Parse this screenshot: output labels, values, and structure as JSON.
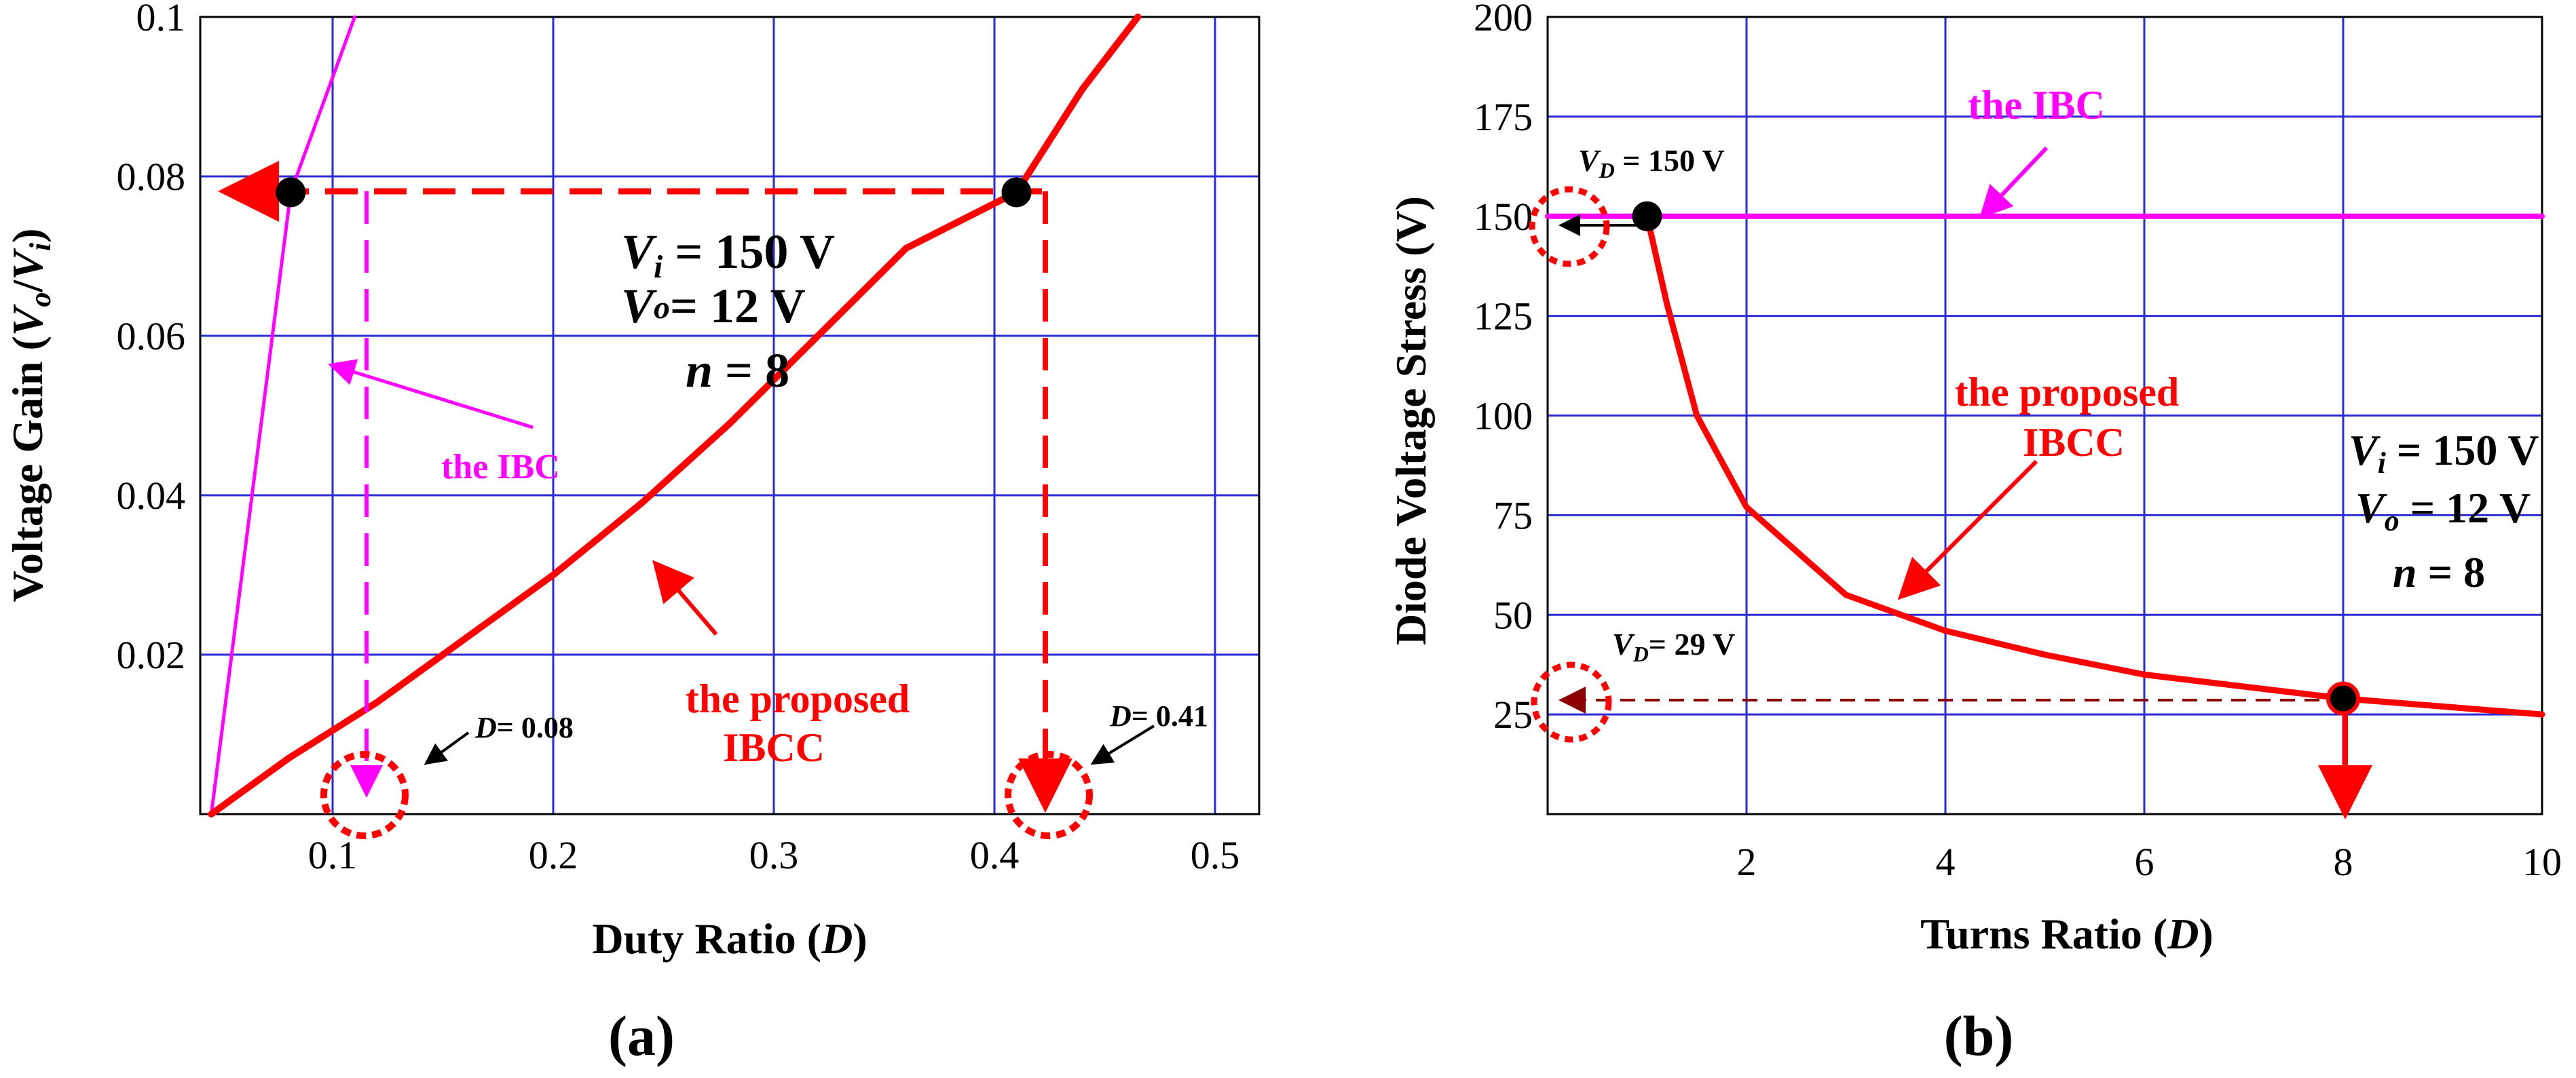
{
  "chart_data": [
    {
      "type": "line",
      "panel_label": "(a)",
      "xlabel": "Duty Ratio (D)",
      "xlabel_parts": {
        "text": "Duty Ratio (",
        "italic": "D",
        "close": ")"
      },
      "ylabel": "Voltage Gain (Vo/Vi)",
      "ylabel_parts": {
        "text": "Voltage Gain  (",
        "v1": "V",
        "s1": "o",
        "slash": "/",
        "v2": "V",
        "s2": "i",
        "close": ")"
      },
      "xlim": [
        0.04,
        0.52
      ],
      "ylim": [
        0,
        0.1
      ],
      "x_ticks": [
        0.1,
        0.2,
        0.3,
        0.4,
        0.5
      ],
      "x_tick_labels": [
        "0.1",
        "0.2",
        "0.3",
        "0.4",
        "0.5"
      ],
      "y_ticks": [
        0.02,
        0.04,
        0.06,
        0.08,
        0.1
      ],
      "y_tick_labels": [
        "0.02",
        "0.04",
        "0.06",
        "0.08",
        "0.1"
      ],
      "grid": true,
      "series": [
        {
          "name": "the IBC",
          "color": "#ff00ff",
          "x": [
            0.045,
            0.081,
            0.11
          ],
          "y": [
            0,
            0.078,
            0.1
          ]
        },
        {
          "name": "the proposed IBCC",
          "color": "#ff0000",
          "x": [
            0.045,
            0.08,
            0.12,
            0.16,
            0.2,
            0.24,
            0.28,
            0.32,
            0.36,
            0.41,
            0.44,
            0.465
          ],
          "y": [
            0,
            0.007,
            0.014,
            0.022,
            0.03,
            0.039,
            0.049,
            0.06,
            0.071,
            0.078,
            0.091,
            0.1
          ]
        }
      ],
      "markers": [
        {
          "x": 0.081,
          "y": 0.078
        },
        {
          "x": 0.41,
          "y": 0.078
        }
      ],
      "annotations": {
        "ibc_label": "the IBC",
        "proposed_line1": "the proposed",
        "proposed_line2": "IBCC",
        "d1_label": "D",
        "d1_value": "= 0.08",
        "d2_label": "D",
        "d2_value": "= 0.41",
        "cond_vi_sym": "V",
        "cond_vi_sub": "i",
        "cond_vi_val": " = 150 V",
        "cond_vo_sym": "V",
        "cond_vo_sub": "o",
        "cond_vo_val": "= 12 V",
        "cond_n_sym": "n",
        "cond_n_val": " = 8"
      }
    },
    {
      "type": "line",
      "panel_label": "(b)",
      "xlabel": "Turns Ratio (D)",
      "xlabel_parts": {
        "text": "Turns Ratio (",
        "italic": "D",
        "close": ")"
      },
      "ylabel": "Diode Voltage Stress (V)",
      "xlim": [
        0,
        10
      ],
      "ylim": [
        0,
        200
      ],
      "x_ticks": [
        2,
        4,
        6,
        8,
        10
      ],
      "x_tick_labels": [
        "2",
        "4",
        "6",
        "8",
        "10"
      ],
      "y_ticks": [
        25,
        50,
        75,
        100,
        125,
        150,
        175,
        200
      ],
      "y_tick_labels": [
        "25",
        "50",
        "75",
        "100",
        "125",
        "150",
        "175",
        "200"
      ],
      "grid": true,
      "series": [
        {
          "name": "the IBC",
          "color": "#ff00ff",
          "x": [
            0,
            10
          ],
          "y": [
            150,
            150
          ]
        },
        {
          "name": "the proposed IBCC",
          "color": "#ff0000",
          "x": [
            1,
            1.2,
            1.5,
            2,
            2.5,
            3,
            4,
            5,
            6,
            7,
            8,
            9,
            10
          ],
          "y": [
            150,
            128,
            100,
            77,
            66,
            55,
            46,
            40,
            35,
            32,
            29,
            27,
            25
          ]
        }
      ],
      "markers": [
        {
          "x": 1,
          "y": 150
        },
        {
          "x": 8,
          "y": 29
        }
      ],
      "annotations": {
        "ibc_label": "the IBC",
        "proposed_line1": "the proposed",
        "proposed_line2": "IBCC",
        "vd150_sym": "V",
        "vd150_sub": "D",
        "vd150_val": " = 150 V",
        "vd29_sym": "V",
        "vd29_sub": "D",
        "vd29_val": "= 29 V",
        "cond_vi_sym": "V",
        "cond_vi_sub": "i",
        "cond_vi_val": " = 150 V",
        "cond_vo_sym": "V",
        "cond_vo_sub": "o",
        "cond_vo_val": " = 12 V",
        "cond_n_sym": "n",
        "cond_n_val": " = 8"
      }
    }
  ]
}
